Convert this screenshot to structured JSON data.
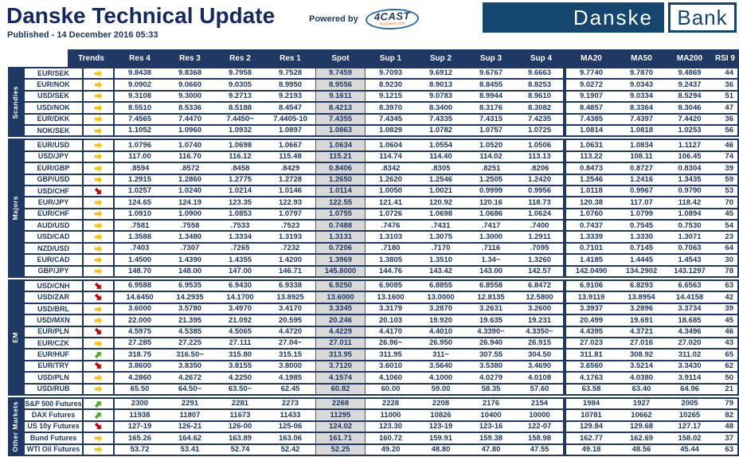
{
  "header": {
    "title": "Danske Technical Update",
    "published": "Published - 14 December 2016 05:33",
    "powered_by": "Powered by",
    "fourcast_name": "4CAST",
    "fourcast_sub": "4castweb.com",
    "logo_danske": "Danske",
    "logo_bank": "Bank"
  },
  "colors": {
    "navy": "#1F3864",
    "logo_navy": "#14466F",
    "spot_bg": "#D9D9D9",
    "arrow_flat": "#FFC000",
    "arrow_down": "#C00000",
    "arrow_up": "#4EA72E"
  },
  "table": {
    "columns": [
      "Trends",
      "Res 4",
      "Res 3",
      "Res 2",
      "Res 1",
      "Spot",
      "Sup 1",
      "Sup 2",
      "Sup 3",
      "Sup 4",
      "MA20",
      "MA50",
      "MA200",
      "RSI 9"
    ],
    "sections": [
      {
        "label": "Scandies",
        "rows": [
          {
            "name": "EUR/SEK",
            "trend": "flat",
            "values": [
              "9.8438",
              "9.8368",
              "9.7958",
              "9.7528",
              "9.7459",
              "9.7093",
              "9.6912",
              "9.6767",
              "9.6663",
              "9.7740",
              "9.7870",
              "9.4869",
              "44"
            ]
          },
          {
            "name": "EUR/NOK",
            "trend": "flat",
            "values": [
              "9.0902",
              "9.0660",
              "9.0305",
              "8.9950",
              "8.9556",
              "8.9230",
              "8.9013",
              "8.8455",
              "8.8253",
              "9.0272",
              "9.0343",
              "9.2437",
              "36"
            ]
          },
          {
            "name": "USD/SEK",
            "trend": "flat",
            "values": [
              "9.3108",
              "9.3000",
              "9.2713",
              "9.2193",
              "9.1611",
              "9.1215",
              "9.0783",
              "8.9944",
              "8.9610",
              "9.1907",
              "9.0334",
              "8.5294",
              "51"
            ]
          },
          {
            "name": "USD/NOK",
            "trend": "flat",
            "values": [
              "8.5510",
              "8.5336",
              "8.5188",
              "8.4547",
              "8.4213",
              "8.3970",
              "8.3400",
              "8.3176",
              "8.3082",
              "8.4857",
              "8.3364",
              "8.3046",
              "47"
            ]
          },
          {
            "name": "EUR/DKK",
            "trend": "flat",
            "values": [
              "7.4565",
              "7.4470",
              "7.4450~",
              "7.4405-10",
              "7.4355",
              "7.4345",
              "7.4335",
              "7.4315",
              "7.4235",
              "7.4385",
              "7.4397",
              "7.4420",
              "36"
            ]
          },
          {
            "name": "NOK/SEK",
            "trend": "flat",
            "values": [
              "1.1052",
              "1.0960",
              "1.0932",
              "1.0897",
              "1.0863",
              "1.0829",
              "1.0782",
              "1.0757",
              "1.0725",
              "1.0814",
              "1.0818",
              "1.0253",
              "56"
            ]
          }
        ]
      },
      {
        "label": "Majors",
        "rows": [
          {
            "name": "EUR/USD",
            "trend": "flat",
            "values": [
              "1.0796",
              "1.0740",
              "1.0698",
              "1.0667",
              "1.0634",
              "1.0604",
              "1.0554",
              "1.0520",
              "1.0506",
              "1.0631",
              "1.0834",
              "1.1127",
              "46"
            ]
          },
          {
            "name": "USD/JPY",
            "trend": "flat",
            "values": [
              "117.00",
              "116.70",
              "116.12",
              "115.48",
              "115.21",
              "114.74",
              "114.40",
              "114.02",
              "113.13",
              "113.22",
              "108.11",
              "106.45",
              "74"
            ]
          },
          {
            "name": "EUR/GBP",
            "trend": "flat",
            "values": [
              ".8594",
              ".8572",
              ".8458",
              ".8429",
              "0.8406",
              ".8342",
              ".8305",
              ".8251",
              ".8206",
              "0.8473",
              "0.8727",
              "0.8304",
              "39"
            ]
          },
          {
            "name": "GBP/USD",
            "trend": "flat",
            "values": [
              "1.2915",
              "1.2860",
              "1.2775",
              "1.2728",
              "1.2650",
              "1.2620",
              "1.2546",
              "1.2505",
              "1.2420",
              "1.2546",
              "1.2416",
              "1.3435",
              "59"
            ]
          },
          {
            "name": "USD/CHF",
            "trend": "down",
            "values": [
              "1.0257",
              "1.0240",
              "1.0214",
              "1.0146",
              "1.0114",
              "1.0050",
              "1.0021",
              "0.9999",
              "0.9956",
              "1.0118",
              "0.9967",
              "0.9790",
              "53"
            ]
          },
          {
            "name": "EUR/JPY",
            "trend": "flat",
            "values": [
              "124.65",
              "124.19",
              "123.35",
              "122.93",
              "122.55",
              "121.41",
              "120.92",
              "120.16",
              "118.73",
              "120.38",
              "117.07",
              "118.42",
              "70"
            ]
          },
          {
            "name": "EUR/CHF",
            "trend": "flat",
            "values": [
              "1.0910",
              "1.0900",
              "1.0853",
              "1.0797",
              "1.0755",
              "1.0726",
              "1.0698",
              "1.0686",
              "1.0624",
              "1.0760",
              "1.0799",
              "1.0894",
              "45"
            ]
          },
          {
            "name": "AUD/USD",
            "trend": "flat",
            "values": [
              ".7581",
              ".7558",
              ".7533",
              ".7523",
              "0.7488",
              ".7476",
              ".7431",
              ".7417",
              ".7400",
              "0.7437",
              "0.7545",
              "0.7530",
              "54"
            ]
          },
          {
            "name": "USD/CAD",
            "trend": "flat",
            "values": [
              "1.3588",
              "1.3480",
              "1.3334",
              "1.3193",
              "1.3131",
              "1.3103",
              "1.3075",
              "1.3000",
              "1.2911",
              "1.3339",
              "1.3330",
              "1.3071",
              "23"
            ]
          },
          {
            "name": "NZD/USD",
            "trend": "flat",
            "values": [
              ".7403",
              ".7307",
              ".7265",
              ".7232",
              "0.7206",
              ".7180",
              ".7170",
              ".7116",
              ".7095",
              "0.7101",
              "0.7145",
              "0.7063",
              "64"
            ]
          },
          {
            "name": "EUR/CAD",
            "trend": "flat",
            "values": [
              "1.4500",
              "1.4390",
              "1.4355",
              "1.4200",
              "1.3969",
              "1.3805",
              "1.3510",
              "1.34~",
              "1.3260",
              "1.4185",
              "1.4445",
              "1.4543",
              "30"
            ]
          },
          {
            "name": "GBP/JPY",
            "trend": "flat",
            "values": [
              "148.70",
              "148.00",
              "147.00",
              "146.71",
              "145.8000",
              "144.76",
              "143.42",
              "143.00",
              "142.57",
              "142.0490",
              "134.2902",
              "143.1297",
              "78"
            ]
          }
        ]
      },
      {
        "label": "EM",
        "rows": [
          {
            "name": "USD/CNH",
            "trend": "down",
            "values": [
              "6.9588",
              "6.9535",
              "6.9430",
              "6.9338",
              "6.9250",
              "6.9085",
              "6.8855",
              "6.8558",
              "6.8472",
              "6.9106",
              "6.8293",
              "6.6563",
              "63"
            ]
          },
          {
            "name": "USD/ZAR",
            "trend": "down",
            "values": [
              "14.6450",
              "14.2935",
              "14.1700",
              "13.8925",
              "13.6000",
              "13.1600",
              "13.0000",
              "12.8135",
              "12.5800",
              "13.9119",
              "13.8954",
              "14.4158",
              "42"
            ]
          },
          {
            "name": "USD/BRL",
            "trend": "flat",
            "values": [
              "3.6000",
              "3.5780",
              "3.4970",
              "3.4170",
              "3.3345",
              "3.3179",
              "3.2870",
              "3.2631",
              "3.2600",
              "3.3937",
              "3.2896",
              "3.3734",
              "39"
            ]
          },
          {
            "name": "USD/MXN",
            "trend": "flat",
            "values": [
              "22.000",
              "21.395",
              "21.092",
              "20.595",
              "20.246",
              "20.103",
              "19.920",
              "19.635",
              "19.231",
              "20.499",
              "19.691",
              "18.685",
              "45"
            ]
          },
          {
            "name": "EUR/PLN",
            "trend": "down",
            "values": [
              "4.5975",
              "4.5385",
              "4.5065",
              "4.4720",
              "4.4229",
              "4.4170",
              "4.4010",
              "4.3390~",
              "4.3350~",
              "4.4395",
              "4.3721",
              "4.3496",
              "46"
            ]
          },
          {
            "name": "EUR/CZK",
            "trend": "flat",
            "values": [
              "27.285",
              "27.225",
              "27.111",
              "27.04~",
              "27.011",
              "26.96~",
              "26.950",
              "26.940",
              "26.915",
              "27.023",
              "27.016",
              "27.020",
              "43"
            ]
          },
          {
            "name": "EUR/HUF",
            "trend": "up",
            "values": [
              "318.75",
              "316.50~",
              "315.80",
              "315.15",
              "313.95",
              "311.95",
              "311~",
              "307.55",
              "304.50",
              "311.81",
              "308.92",
              "311.02",
              "65"
            ]
          },
          {
            "name": "EUR/TRY",
            "trend": "down",
            "values": [
              "3.8600",
              "3.8350",
              "3.8155",
              "3.8000",
              "3.7120",
              "3.6010",
              "3.5640",
              "3.5380",
              "3.4690",
              "3.6560",
              "3.5214",
              "3.3430",
              "62"
            ]
          },
          {
            "name": "USD/PLN",
            "trend": "flat",
            "values": [
              "4.2860",
              "4.2672",
              "4.2250",
              "4.1985",
              "4.1574",
              "4.1060",
              "4.1000",
              "4.0279",
              "4.0108",
              "4.1763",
              "4.0380",
              "3.9114",
              "50"
            ]
          },
          {
            "name": "USD/RUB",
            "trend": "flat",
            "values": [
              "65.50",
              "64.50~",
              "63.50~",
              "62.45",
              "60.82",
              "60.00",
              "59.00",
              "58.35",
              "57.60",
              "63.58",
              "63.40",
              "64.96",
              "21"
            ]
          }
        ]
      },
      {
        "label": "Other Markets",
        "rows": [
          {
            "name": "S&P 500 Futures",
            "trend": "up",
            "values": [
              "2300",
              "2291",
              "2281",
              "2273",
              "2268",
              "2228",
              "2208",
              "2176",
              "2154",
              "1984",
              "1927",
              "2005",
              "79"
            ]
          },
          {
            "name": "DAX Futures",
            "trend": "up",
            "values": [
              "11938",
              "11807",
              "11673",
              "11433",
              "11295",
              "11000",
              "10826",
              "10400",
              "10000",
              "10781",
              "10662",
              "10265",
              "82"
            ]
          },
          {
            "name": "US 10y Futures",
            "trend": "down",
            "values": [
              "127-19",
              "126-21",
              "126-00",
              "125-06",
              "124.02",
              "123.30",
              "123-19",
              "123-16",
              "122-07",
              "129.84",
              "129.68",
              "127.17",
              "48"
            ]
          },
          {
            "name": "Bund Futures",
            "trend": "flat",
            "values": [
              "165.26",
              "164.62",
              "163.89",
              "163.06",
              "161.71",
              "160.72",
              "159.91",
              "159.38",
              "158.98",
              "162.77",
              "162.69",
              "158.02",
              "37"
            ]
          },
          {
            "name": "WTI Oil Futures",
            "trend": "flat",
            "values": [
              "53.72",
              "53.41",
              "52.74",
              "52.42",
              "52.25",
              "49.20",
              "48.80",
              "47.80",
              "47.55",
              "49.18",
              "48.56",
              "45.44",
              "63"
            ]
          }
        ]
      }
    ]
  }
}
